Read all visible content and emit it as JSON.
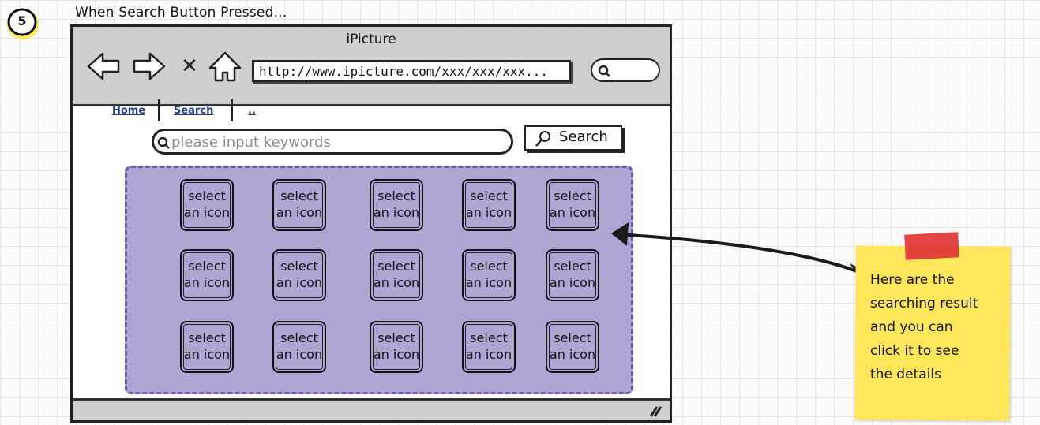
{
  "step": {
    "number": "5",
    "title": "When Search Button Pressed..."
  },
  "browser": {
    "title": "iPicture",
    "url": "http://www.ipicture.com/xxx/xxx/xxx..."
  },
  "page": {
    "tabs": [
      {
        "label": "Home"
      },
      {
        "label": "Search"
      },
      {
        "label": ".."
      }
    ],
    "search": {
      "placeholder": "please input keywords",
      "button_label": "Search"
    },
    "results": {
      "tiles": [
        {
          "line1": "select",
          "line2": "an icon"
        },
        {
          "line1": "select",
          "line2": "an icon"
        },
        {
          "line1": "select",
          "line2": "an icon"
        },
        {
          "line1": "select",
          "line2": "an icon"
        },
        {
          "line1": "select",
          "line2": "an icon"
        },
        {
          "line1": "select",
          "line2": "an icon"
        },
        {
          "line1": "select",
          "line2": "an icon"
        },
        {
          "line1": "select",
          "line2": "an icon"
        },
        {
          "line1": "select",
          "line2": "an icon"
        },
        {
          "line1": "select",
          "line2": "an icon"
        },
        {
          "line1": "select",
          "line2": "an icon"
        },
        {
          "line1": "select",
          "line2": "an icon"
        },
        {
          "line1": "select",
          "line2": "an icon"
        },
        {
          "line1": "select",
          "line2": "an icon"
        },
        {
          "line1": "select",
          "line2": "an icon"
        }
      ]
    }
  },
  "annotation": {
    "lines": [
      "Here are the",
      "searching result",
      "and you can",
      "click it to see",
      "the details"
    ]
  },
  "colors": {
    "results_fill": "#b1a4d3",
    "results_border": "#6a58a8",
    "note_fill": "#fde65a",
    "note_tape": "#e23a3a",
    "badge_fill": "#fce94f",
    "chrome_gray": "#cfcfcf",
    "link_blue": "#1d3e8a"
  },
  "icons": {
    "back": "back-arrow-icon",
    "forward": "forward-arrow-icon",
    "stop": "close-icon",
    "home": "home-icon",
    "search": "magnifier-icon",
    "resize": "resize-grip-icon"
  }
}
